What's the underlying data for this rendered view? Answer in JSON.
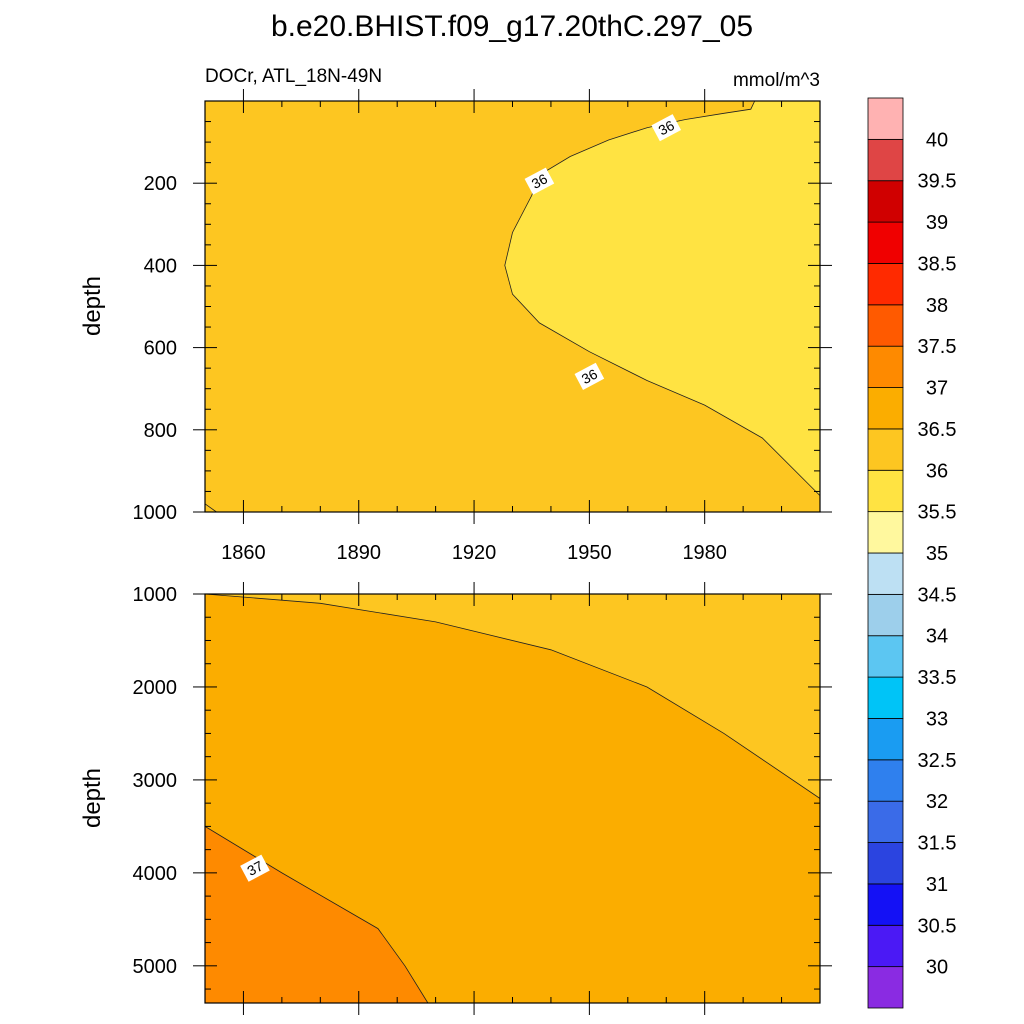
{
  "chart_data": {
    "type": "contour",
    "title": "b.e20.BHIST.f09_g17.20thC.297_05",
    "subtitle_left": "DOCr, ATL_18N-49N",
    "units": "mmol/m^3",
    "xlim": [
      1850,
      2010
    ],
    "x_ticks": [
      1860,
      1890,
      1920,
      1950,
      1980
    ],
    "panels": [
      {
        "name": "upper",
        "ylabel": "depth",
        "ylim": [
          0,
          1000
        ],
        "y_ticks": [
          200,
          400,
          600,
          800,
          1000
        ],
        "regions": [
          {
            "range": "36-36.5",
            "color": "#FDC621"
          },
          {
            "range": "35.5-36",
            "color": "#FFE342"
          }
        ],
        "contours": [
          {
            "level": 36,
            "points": [
              [
                1993,
                0
              ],
              [
                1992,
                20
              ],
              [
                1985,
                30
              ],
              [
                1975,
                45
              ],
              [
                1965,
                65
              ],
              [
                1955,
                95
              ],
              [
                1945,
                135
              ],
              [
                1937,
                180
              ],
              [
                1935,
                230
              ],
              [
                1930,
                320
              ],
              [
                1928,
                400
              ],
              [
                1930,
                470
              ],
              [
                1937,
                540
              ],
              [
                1950,
                610
              ],
              [
                1965,
                680
              ],
              [
                1980,
                740
              ],
              [
                1995,
                820
              ],
              [
                2010,
                960
              ]
            ],
            "labels": [
              {
                "text": "36",
                "x": 1970,
                "y": 65
              },
              {
                "text": "36",
                "x": 1937,
                "y": 195
              },
              {
                "text": "36",
                "x": 1950,
                "y": 670
              }
            ]
          },
          {
            "level": 36.5,
            "points": [
              [
                1850,
                980
              ],
              [
                1853,
                1000
              ]
            ],
            "labels": []
          }
        ]
      },
      {
        "name": "lower",
        "ylabel": "depth",
        "ylim": [
          1000,
          5400
        ],
        "y_ticks": [
          1000,
          2000,
          3000,
          4000,
          5000
        ],
        "regions": [
          {
            "range": "36.5-37",
            "color": "#FBAD00"
          },
          {
            "range": "36-36.5",
            "color": "#FDC621"
          },
          {
            "range": "37-37.5",
            "color": "#FE8A00"
          }
        ],
        "contours": [
          {
            "level": 36.5,
            "points": [
              [
                1850,
                1000
              ],
              [
                1880,
                1100
              ],
              [
                1910,
                1300
              ],
              [
                1940,
                1600
              ],
              [
                1965,
                2000
              ],
              [
                1985,
                2500
              ],
              [
                2010,
                3200
              ]
            ],
            "labels": []
          },
          {
            "level": 37,
            "points": [
              [
                1850,
                3500
              ],
              [
                1870,
                4000
              ],
              [
                1895,
                4600
              ],
              [
                1902,
                5000
              ],
              [
                1908,
                5400
              ]
            ],
            "labels": [
              {
                "text": "37",
                "x": 1863,
                "y": 3950
              }
            ]
          }
        ]
      }
    ],
    "colorbar": {
      "levels": [
        30,
        30.5,
        31,
        31.5,
        32,
        32.5,
        33,
        33.5,
        34,
        34.5,
        35,
        35.5,
        36,
        36.5,
        37,
        37.5,
        38,
        38.5,
        39,
        39.5,
        40
      ],
      "colors": [
        "#8A2BE2",
        "#4B19F5",
        "#1411F5",
        "#2B44E0",
        "#3A6BE8",
        "#2F80EE",
        "#1A9CF2",
        "#00C4F7",
        "#5CC6F2",
        "#9DCFEB",
        "#BDE0F3",
        "#FFF89E",
        "#FFE342",
        "#FDC621",
        "#FBAD00",
        "#FE8A00",
        "#FF5A00",
        "#FF2A00",
        "#F00000",
        "#D00000",
        "#DF4545",
        "#FFB2B2"
      ]
    }
  }
}
